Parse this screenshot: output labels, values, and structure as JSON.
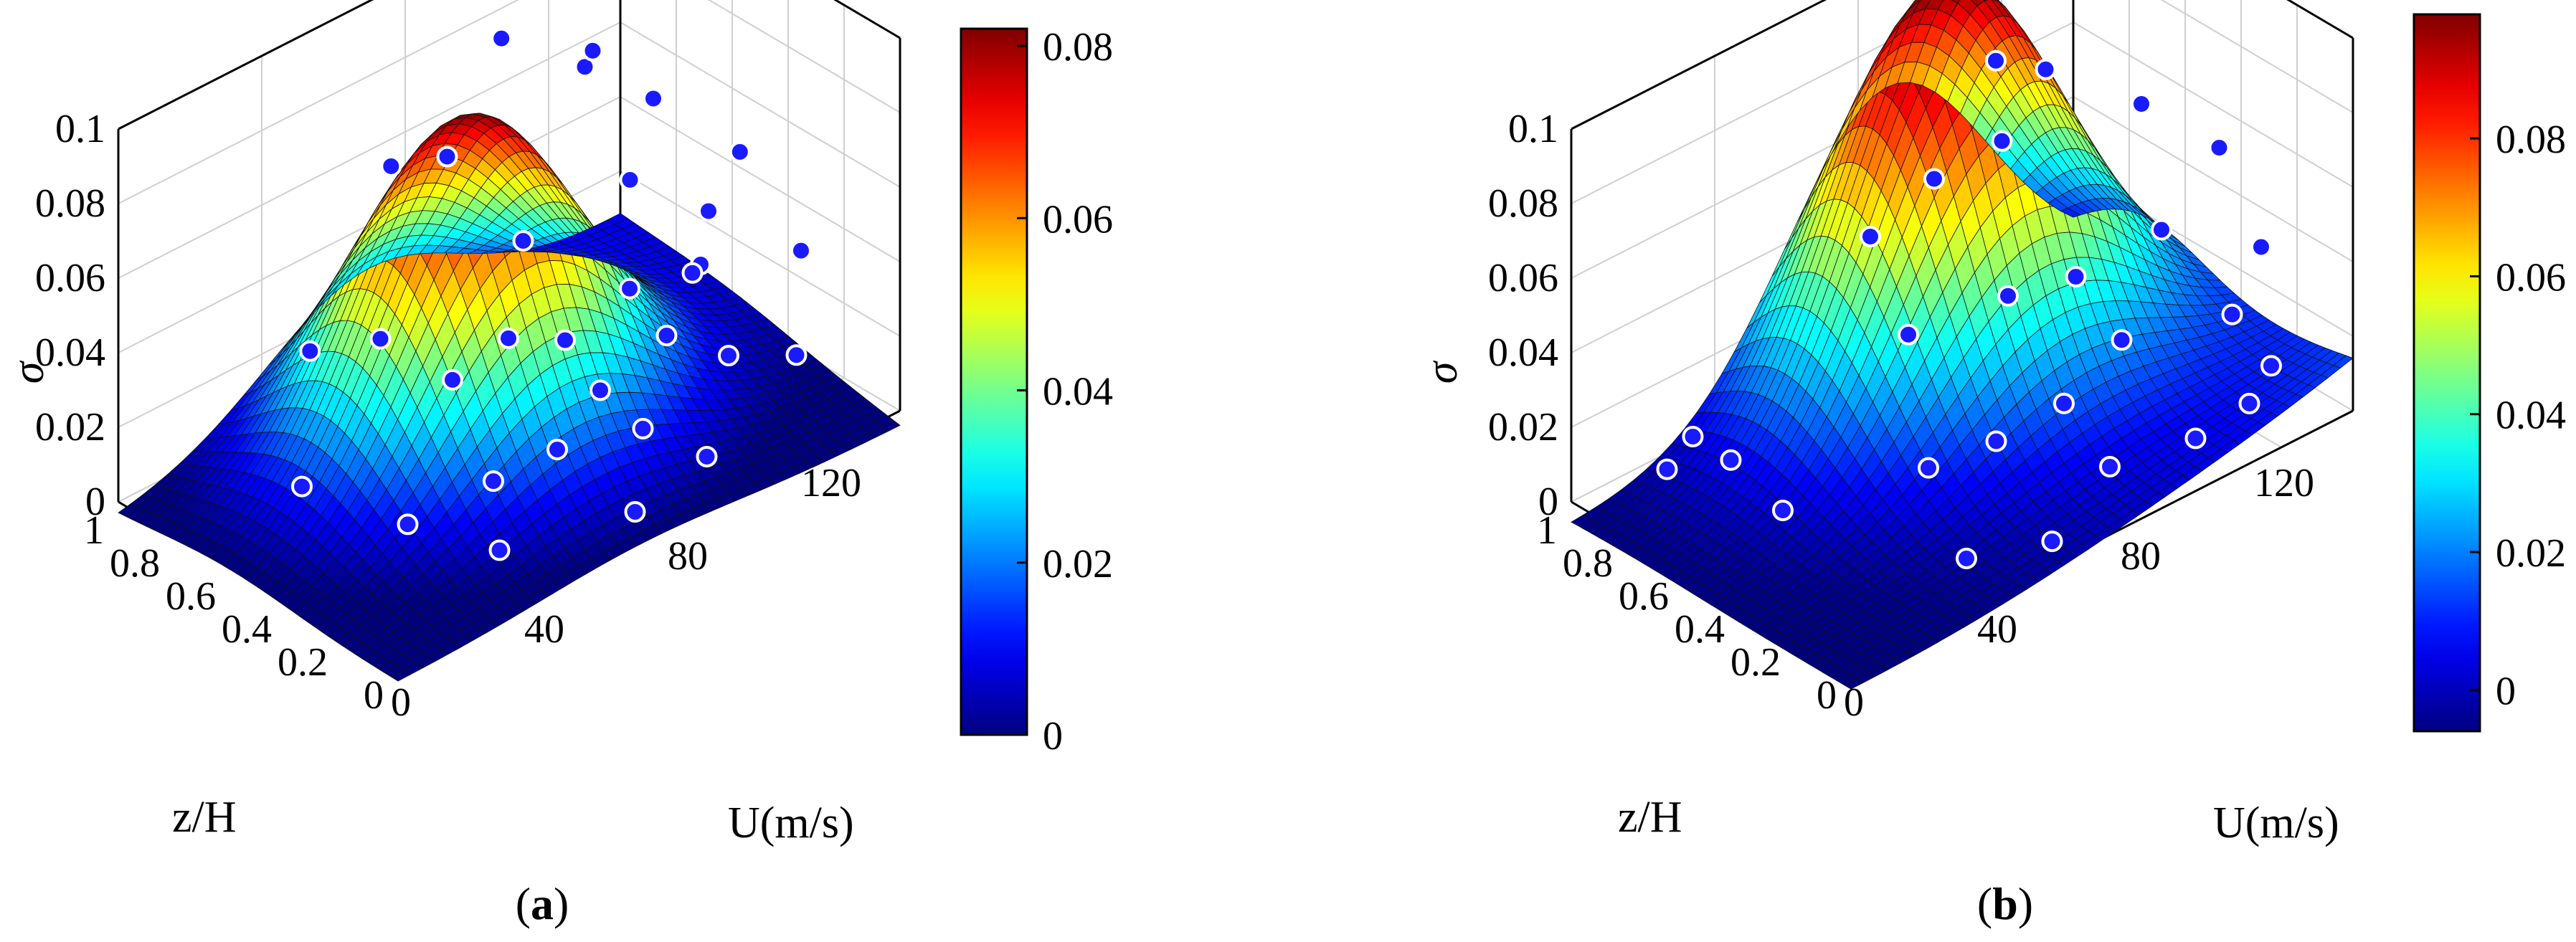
{
  "chart_data": [
    {
      "type": "surface",
      "caption_label": "a",
      "zlabel": "σ",
      "xlabel": "U(m/s)",
      "ylabel": "z/H",
      "xlim": [
        0,
        140
      ],
      "ylim": [
        0,
        1
      ],
      "zlim": [
        0,
        0.1
      ],
      "x_ticks": [
        "0",
        "40",
        "80",
        "120"
      ],
      "y_ticks": [
        "0",
        "0.2",
        "0.4",
        "0.6",
        "0.8",
        "1"
      ],
      "z_ticks": [
        "0",
        "0.02",
        "0.04",
        "0.06",
        "0.08",
        "0.1"
      ],
      "colorbar": {
        "ticks": [
          "0",
          "0.02",
          "0.04",
          "0.06",
          "0.08"
        ],
        "range": [
          0,
          0.082
        ],
        "colormap": "jet"
      },
      "surface_peak": {
        "U": 70,
        "zH": 0.65,
        "sigma": 0.086
      },
      "grid": true,
      "points": [
        {
          "U": 48,
          "zH": 0.93,
          "sigma": 0.02
        },
        {
          "U": 55,
          "zH": 0.73,
          "sigma": 0.075
        },
        {
          "U": 62,
          "zH": 0.6,
          "sigma": 0.02
        },
        {
          "U": 38,
          "zH": 0.55,
          "sigma": 0.045
        },
        {
          "U": 85,
          "zH": 0.72,
          "sigma": 0.095
        },
        {
          "U": 95,
          "zH": 0.55,
          "sigma": 0.09
        },
        {
          "U": 92,
          "zH": 0.35,
          "sigma": 0.07
        },
        {
          "U": 105,
          "zH": 0.65,
          "sigma": 0.085
        },
        {
          "U": 118,
          "zH": 0.6,
          "sigma": 0.068
        },
        {
          "U": 125,
          "zH": 0.38,
          "sigma": 0.06
        },
        {
          "U": 80,
          "zH": 0.85,
          "sigma": 0.06
        },
        {
          "U": 70,
          "zH": 0.45,
          "sigma": 0.06
        },
        {
          "U": 88,
          "zH": 0.3,
          "sigma": 0.045
        },
        {
          "U": 100,
          "zH": 0.2,
          "sigma": 0.05
        },
        {
          "U": 110,
          "zH": 0.3,
          "sigma": 0.055
        },
        {
          "U": 128,
          "zH": 0.2,
          "sigma": 0.04
        },
        {
          "U": 70,
          "zH": 0.3,
          "sigma": 0.04
        },
        {
          "U": 62,
          "zH": 0.4,
          "sigma": 0.04
        },
        {
          "U": 72,
          "zH": 0.2,
          "sigma": 0.03
        },
        {
          "U": 60,
          "zH": 0.2,
          "sigma": 0.02
        },
        {
          "U": 80,
          "zH": 0.15,
          "sigma": 0.018
        },
        {
          "U": 100,
          "zH": 0.1,
          "sigma": 0.03
        },
        {
          "U": 115,
          "zH": 0.05,
          "sigma": 0.025
        },
        {
          "U": 90,
          "zH": 0.05,
          "sigma": 0.01
        },
        {
          "U": 70,
          "zH": 0.05,
          "sigma": 0.005
        },
        {
          "U": 40,
          "zH": 0.15,
          "sigma": 0.005
        },
        {
          "U": 30,
          "zH": 0.35,
          "sigma": 0.008
        },
        {
          "U": 20,
          "zH": 0.6,
          "sigma": 0.012
        },
        {
          "U": 50,
          "zH": 0.3,
          "sigma": 0.012
        },
        {
          "U": 110,
          "zH": 0.45,
          "sigma": 0.015
        },
        {
          "U": 125,
          "zH": 0.55,
          "sigma": 0.02
        }
      ]
    },
    {
      "type": "surface",
      "caption_label": "b",
      "zlabel": "σ",
      "xlabel": "U(m/s)",
      "ylabel": "z/H",
      "xlim": [
        0,
        140
      ],
      "ylim": [
        0,
        1
      ],
      "zlim": [
        0,
        0.1
      ],
      "x_ticks": [
        "0",
        "40",
        "80",
        "120"
      ],
      "y_ticks": [
        "0",
        "0.2",
        "0.4",
        "0.6",
        "0.8",
        "1"
      ],
      "z_ticks": [
        "0",
        "0.02",
        "0.04",
        "0.06",
        "0.08",
        "0.1"
      ],
      "colorbar": {
        "ticks": [
          "0",
          "0.02",
          "0.04",
          "0.06",
          "0.08"
        ],
        "range": [
          -0.006,
          0.098
        ],
        "colormap": "jet"
      },
      "surface_peak": {
        "U": 90,
        "zH": 0.8,
        "sigma": 0.11
      },
      "grid": true,
      "points": [
        {
          "U": 75,
          "zH": 0.95,
          "sigma": 0.11
        },
        {
          "U": 82,
          "zH": 0.9,
          "sigma": 0.105
        },
        {
          "U": 95,
          "zH": 0.7,
          "sigma": 0.085
        },
        {
          "U": 105,
          "zH": 0.65,
          "sigma": 0.08
        },
        {
          "U": 120,
          "zH": 0.5,
          "sigma": 0.07
        },
        {
          "U": 130,
          "zH": 0.35,
          "sigma": 0.06
        },
        {
          "U": 85,
          "zH": 0.55,
          "sigma": 0.075
        },
        {
          "U": 70,
          "zH": 0.6,
          "sigma": 0.07
        },
        {
          "U": 60,
          "zH": 0.7,
          "sigma": 0.055
        },
        {
          "U": 55,
          "zH": 0.5,
          "sigma": 0.04
        },
        {
          "U": 75,
          "zH": 0.4,
          "sigma": 0.045
        },
        {
          "U": 90,
          "zH": 0.35,
          "sigma": 0.045
        },
        {
          "U": 110,
          "zH": 0.3,
          "sigma": 0.05
        },
        {
          "U": 130,
          "zH": 0.2,
          "sigma": 0.04
        },
        {
          "U": 118,
          "zH": 0.15,
          "sigma": 0.03
        },
        {
          "U": 95,
          "zH": 0.25,
          "sigma": 0.03
        },
        {
          "U": 75,
          "zH": 0.2,
          "sigma": 0.025
        },
        {
          "U": 60,
          "zH": 0.25,
          "sigma": 0.02
        },
        {
          "U": 45,
          "zH": 0.3,
          "sigma": 0.018
        },
        {
          "U": 80,
          "zH": 0.1,
          "sigma": 0.01
        },
        {
          "U": 100,
          "zH": 0.05,
          "sigma": 0.01
        },
        {
          "U": 115,
          "zH": 0.05,
          "sigma": 0.012
        },
        {
          "U": 125,
          "zH": 0.1,
          "sigma": 0.015
        },
        {
          "U": 60,
          "zH": 0.05,
          "sigma": 0.002
        },
        {
          "U": 40,
          "zH": 0.1,
          "sigma": 0.005
        },
        {
          "U": 20,
          "zH": 0.5,
          "sigma": 0.01
        },
        {
          "U": 25,
          "zH": 0.75,
          "sigma": 0.01
        },
        {
          "U": 15,
          "zH": 0.85,
          "sigma": 0.008
        },
        {
          "U": 30,
          "zH": 0.95,
          "sigma": 0.005
        }
      ]
    }
  ]
}
